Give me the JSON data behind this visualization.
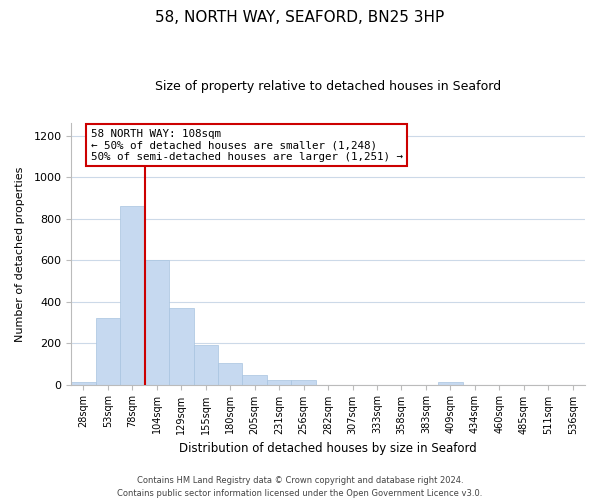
{
  "title": "58, NORTH WAY, SEAFORD, BN25 3HP",
  "subtitle": "Size of property relative to detached houses in Seaford",
  "xlabel": "Distribution of detached houses by size in Seaford",
  "ylabel": "Number of detached properties",
  "bar_labels": [
    "28sqm",
    "53sqm",
    "78sqm",
    "104sqm",
    "129sqm",
    "155sqm",
    "180sqm",
    "205sqm",
    "231sqm",
    "256sqm",
    "282sqm",
    "307sqm",
    "333sqm",
    "358sqm",
    "383sqm",
    "409sqm",
    "434sqm",
    "460sqm",
    "485sqm",
    "511sqm",
    "536sqm"
  ],
  "bar_values": [
    10,
    320,
    860,
    600,
    370,
    190,
    105,
    47,
    20,
    20,
    0,
    0,
    0,
    0,
    0,
    10,
    0,
    0,
    0,
    0,
    0
  ],
  "bar_color": "#c6d9f0",
  "bar_edge_color": "#a8c4e0",
  "vline_x": 3.0,
  "vline_color": "#cc0000",
  "ylim_max": 1260,
  "yticks": [
    0,
    200,
    400,
    600,
    800,
    1000,
    1200
  ],
  "annotation_title": "58 NORTH WAY: 108sqm",
  "annotation_line1": "← 50% of detached houses are smaller (1,248)",
  "annotation_line2": "50% of semi-detached houses are larger (1,251) →",
  "annotation_box_color": "#ffffff",
  "annotation_box_edge": "#cc0000",
  "footer_line1": "Contains HM Land Registry data © Crown copyright and database right 2024.",
  "footer_line2": "Contains public sector information licensed under the Open Government Licence v3.0.",
  "background_color": "#ffffff",
  "grid_color": "#ccd9e8"
}
